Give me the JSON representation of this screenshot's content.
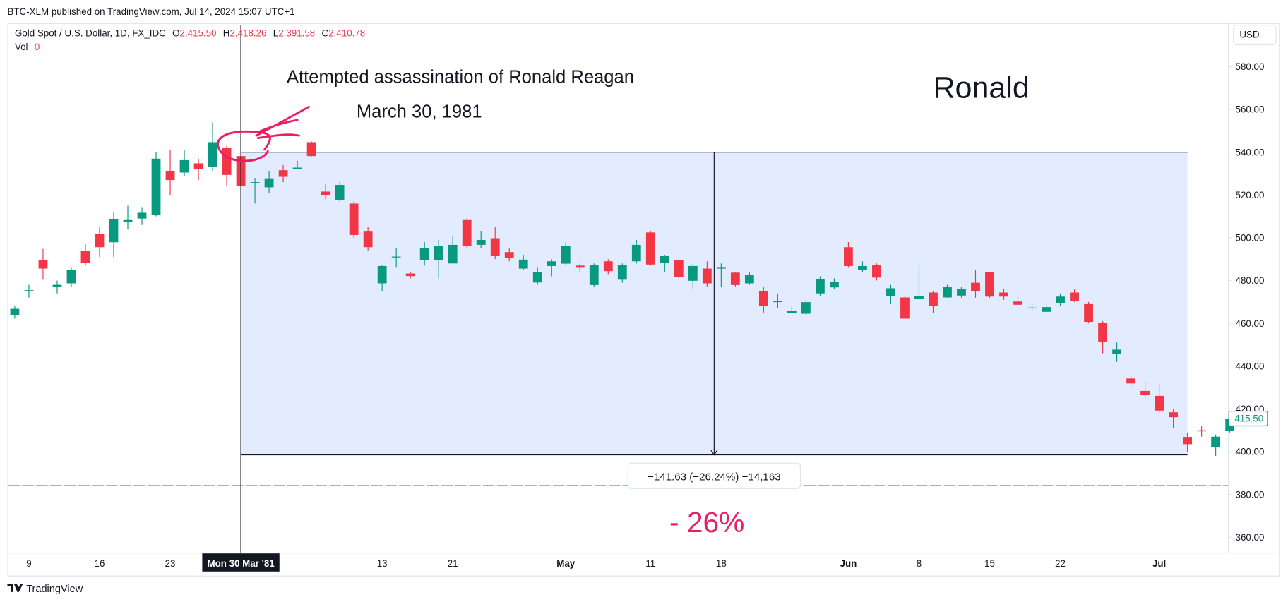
{
  "header": {
    "publisher": "BTC-XLM published on TradingView.com, Jul 14, 2024 15:07 UTC+1",
    "symbol": "Gold Spot / U.S. Dollar, 1D, FX_IDC",
    "ohlc": [
      {
        "key": "O",
        "value": "2,415.50"
      },
      {
        "key": "H",
        "value": "2,418.26"
      },
      {
        "key": "L",
        "value": "2,391.58"
      },
      {
        "key": "C",
        "value": "2,410.78"
      }
    ],
    "volume": {
      "key": "Vol",
      "value": "0"
    },
    "currency": "USD"
  },
  "footer": {
    "brand": "TradingView"
  },
  "chart_data": {
    "type": "candlestick",
    "up_color": "#089981",
    "down_color": "#f23645",
    "categories": [
      null,
      "9",
      null,
      null,
      null,
      null,
      "16",
      null,
      null,
      null,
      null,
      "23",
      null,
      null,
      null,
      null,
      "Mon 30 Mar '81",
      null,
      null,
      null,
      null,
      null,
      null,
      null,
      null,
      null,
      "13",
      null,
      null,
      null,
      null,
      "21",
      null,
      null,
      null,
      null,
      null,
      null,
      null,
      "May",
      null,
      null,
      null,
      null,
      null,
      "11",
      null,
      null,
      null,
      null,
      "18",
      null,
      null,
      null,
      null,
      null,
      null,
      null,
      null,
      "Jun",
      null,
      null,
      null,
      null,
      "8",
      null,
      null,
      null,
      null,
      "15",
      null,
      null,
      null,
      null,
      "22",
      null,
      null,
      null,
      null,
      null,
      null,
      "Jul",
      null,
      null,
      null,
      null,
      null
    ],
    "crosshair_index": 16,
    "open": [
      463.7,
      475,
      489.5,
      477,
      478.7,
      493.7,
      501.7,
      497.9,
      507.5,
      509,
      510.5,
      531,
      530.5,
      534.8,
      533,
      542,
      538.2,
      525.5,
      523.6,
      531.6,
      532,
      544.7,
      521.6,
      517.8,
      516,
      502.9,
      478.7,
      491,
      483.3,
      489.4,
      489.4,
      488,
      508.3,
      496.7,
      499.8,
      493.3,
      485.6,
      479.1,
      486.8,
      487.9,
      487,
      477.9,
      489,
      480.4,
      489,
      502.5,
      488.3,
      489.4,
      479.9,
      485.6,
      485.6,
      483.7,
      478.7,
      475.2,
      470,
      465,
      464.5,
      474,
      476.8,
      495.6,
      484.8,
      487.1,
      472.9,
      472.1,
      471.3,
      474.4,
      472.1,
      473,
      479,
      484,
      474.4,
      470.2,
      467.2,
      465.4,
      469.5,
      474.4,
      469,
      460.3,
      445.7,
      434.2,
      428.4,
      426.1,
      418.4,
      406.9,
      410,
      402,
      409.6
    ],
    "high": [
      468.3,
      478,
      494.8,
      480,
      486,
      497,
      505,
      512,
      515,
      514,
      540,
      541,
      541,
      537,
      554,
      543,
      539,
      528,
      531,
      534,
      536,
      545,
      525,
      526,
      517,
      505,
      487,
      495,
      484,
      498,
      499,
      501,
      509,
      503,
      505,
      495,
      492,
      486,
      490,
      498,
      488,
      488,
      490,
      488,
      499,
      503,
      492,
      490,
      488,
      489,
      488,
      484,
      484,
      477,
      474,
      468,
      471,
      482,
      481,
      498,
      489,
      488,
      478,
      473,
      487,
      475,
      478,
      477,
      485,
      484,
      476,
      473,
      469,
      469,
      474,
      476,
      470,
      461,
      451,
      436,
      433,
      432,
      420,
      409,
      412,
      408,
      416
    ],
    "low": [
      462.2,
      472,
      480.4,
      474,
      477,
      487,
      491,
      491,
      504,
      506,
      510,
      520,
      529,
      527,
      531,
      524,
      524,
      516,
      521,
      526,
      532,
      538,
      518,
      517,
      500,
      494,
      475,
      486,
      481,
      487,
      481,
      488,
      495,
      495,
      490,
      489,
      485,
      478,
      482,
      487,
      484,
      477,
      483,
      479,
      488,
      487,
      484,
      481,
      476,
      477,
      477,
      477,
      478,
      465,
      467,
      465,
      464,
      473,
      476,
      486,
      484,
      480,
      469,
      462,
      471,
      465,
      472,
      472,
      472,
      472,
      471,
      468,
      466,
      465,
      468,
      470,
      460,
      446,
      442,
      430,
      425,
      418,
      411,
      400,
      407,
      398,
      409
    ],
    "close": [
      466.8,
      475.5,
      485.6,
      478,
      484.8,
      488.3,
      495.6,
      508.6,
      508.3,
      511.7,
      537,
      527,
      536.3,
      532,
      544.7,
      529.4,
      524.4,
      526,
      527.8,
      528.5,
      532.8,
      538.2,
      519.8,
      524.7,
      501.3,
      495.6,
      486.8,
      491.2,
      482.1,
      495.2,
      496,
      496.7,
      496,
      499,
      491.4,
      490.6,
      489.8,
      484.1,
      489,
      496.3,
      486,
      487.1,
      484.4,
      487.1,
      496.7,
      487.5,
      491.4,
      481.8,
      486.8,
      478.7,
      486,
      477.9,
      482.5,
      468,
      470.3,
      465.7,
      469.9,
      480.8,
      479.5,
      486.8,
      486.8,
      481.4,
      476.4,
      462.2,
      472.6,
      468.3,
      477.1,
      476,
      475,
      472.5,
      472.5,
      468.7,
      467.4,
      467.6,
      472.5,
      470.6,
      460.7,
      451.5,
      447.7,
      431.9,
      426.5,
      419.2,
      416.1,
      403.5,
      409.5,
      407,
      415.5
    ],
    "last_price_label": "415.50",
    "ylim": [
      352.8,
      599.6
    ],
    "yticks": [
      {
        "value": 360,
        "label": "360.00"
      },
      {
        "value": 380,
        "label": "380.00"
      },
      {
        "value": 400,
        "label": "400.00"
      },
      {
        "value": 420,
        "label": "420.00"
      },
      {
        "value": 440,
        "label": "440.00"
      },
      {
        "value": 460,
        "label": "460.00"
      },
      {
        "value": 480,
        "label": "480.00"
      },
      {
        "value": 500,
        "label": "500.00"
      },
      {
        "value": 520,
        "label": "520.00"
      },
      {
        "value": 540,
        "label": "540.00"
      },
      {
        "value": 560,
        "label": "560.00"
      },
      {
        "value": 580,
        "label": "580.00"
      }
    ],
    "grid": false,
    "measure": {
      "from_index": 16,
      "to_index": 83,
      "top": 540,
      "bottom": 398.5,
      "label": "−141.63 (−26.24%) −14,163"
    },
    "annotations": {
      "event": "Attempted assassination of Ronald Reagan",
      "date": "March 30, 1981",
      "name": "Ronald",
      "change": "- 26%"
    }
  }
}
